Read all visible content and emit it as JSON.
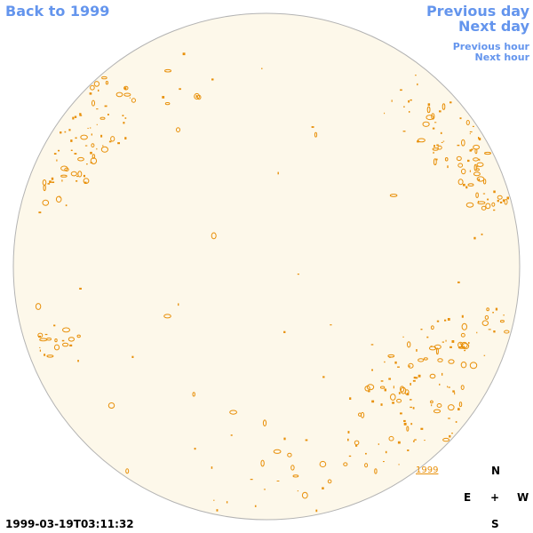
{
  "nav": {
    "back": "Back to 1999",
    "previous_day": "Previous day",
    "next_day": "Next day",
    "previous_hour": "Previous hour",
    "next_hour": "Next hour"
  },
  "compass": {
    "north": "N",
    "east": "E",
    "center": "+",
    "west": "W",
    "south": "S"
  },
  "timestamp": "1999-03-19T03:11:32",
  "map_label": "1999",
  "colors": {
    "sky": "#fdf8ea",
    "border": "#b3b3b3",
    "contour": "#e8900a",
    "link": "#6495ed"
  }
}
